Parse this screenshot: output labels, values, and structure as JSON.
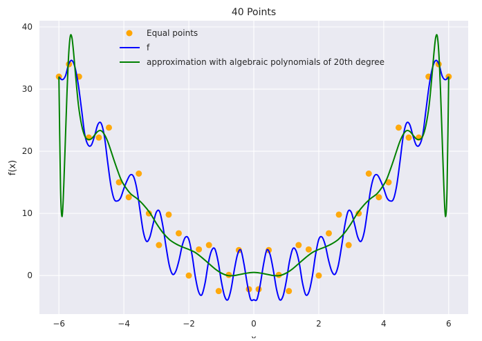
{
  "chart_data": {
    "type": "line",
    "title": "40 Points",
    "xlabel": "x",
    "ylabel": "f(x)",
    "xlim": [
      -6.6,
      6.6
    ],
    "ylim": [
      -6.2,
      41.0
    ],
    "xticks": [
      -6,
      -4,
      -2,
      0,
      2,
      4,
      6
    ],
    "xtick_labels": [
      "−6",
      "−4",
      "−2",
      "0",
      "2",
      "4",
      "6"
    ],
    "yticks": [
      0,
      10,
      20,
      30,
      40
    ],
    "ytick_labels": [
      "0",
      "10",
      "20",
      "30",
      "40"
    ],
    "grid": true,
    "legend_position": "top-center",
    "legend": [
      "Equal points",
      "f",
      "approximation with algebraic polynomials of 20th degree"
    ],
    "colors": {
      "background": "#EAEAF2",
      "grid": "#FFFFFF",
      "points": "#FFA500",
      "f": "#0000FF",
      "approximation": "#008000"
    },
    "series": [
      {
        "name": "Equal points",
        "kind": "scatter",
        "x": [
          -6.0,
          -5.69,
          -5.38,
          -5.08,
          -4.77,
          -4.46,
          -4.15,
          -3.85,
          -3.54,
          -3.23,
          -2.92,
          -2.62,
          -2.31,
          -2.0,
          -1.69,
          -1.38,
          -1.08,
          -0.77,
          -0.46,
          -0.15,
          0.15,
          0.46,
          0.77,
          1.08,
          1.38,
          1.69,
          2.0,
          2.31,
          2.62,
          2.92,
          3.23,
          3.54,
          3.85,
          4.15,
          4.46,
          4.77,
          5.08,
          5.38,
          5.69,
          6.0
        ],
        "y": [
          32.0,
          34.0,
          32.0,
          22.2,
          22.2,
          23.8,
          15.0,
          12.6,
          16.4,
          10.0,
          4.9,
          9.8,
          6.8,
          0.0,
          4.2,
          4.9,
          -2.5,
          0.1,
          4.1,
          -2.2,
          -2.2,
          4.1,
          0.1,
          -2.5,
          4.9,
          4.2,
          0.0,
          6.8,
          9.8,
          4.9,
          10.0,
          16.4,
          12.6,
          15.0,
          23.8,
          22.2,
          22.2,
          32.0,
          34.0,
          32.0
        ]
      },
      {
        "name": "f",
        "kind": "line",
        "x": [
          -6.0,
          -5.9,
          -5.8,
          -5.7,
          -5.6,
          -5.5,
          -5.4,
          -5.3,
          -5.2,
          -5.1,
          -5.0,
          -4.9,
          -4.8,
          -4.7,
          -4.6,
          -4.5,
          -4.4,
          -4.3,
          -4.2,
          -4.1,
          -4.0,
          -3.9,
          -3.8,
          -3.7,
          -3.6,
          -3.5,
          -3.4,
          -3.3,
          -3.2,
          -3.1,
          -3.0,
          -2.9,
          -2.8,
          -2.7,
          -2.6,
          -2.5,
          -2.4,
          -2.3,
          -2.2,
          -2.1,
          -2.0,
          -1.9,
          -1.8,
          -1.7,
          -1.6,
          -1.5,
          -1.4,
          -1.3,
          -1.2,
          -1.1,
          -1.0,
          -0.9,
          -0.8,
          -0.7,
          -0.6,
          -0.5,
          -0.4,
          -0.3,
          -0.2,
          -0.1,
          0.0,
          0.1,
          0.2,
          0.3,
          0.4,
          0.5,
          0.6,
          0.7,
          0.8,
          0.9,
          1.0,
          1.1,
          1.2,
          1.3,
          1.4,
          1.5,
          1.6,
          1.7,
          1.8,
          1.9,
          2.0,
          2.1,
          2.2,
          2.3,
          2.4,
          2.5,
          2.6,
          2.7,
          2.8,
          2.9,
          3.0,
          3.1,
          3.2,
          3.3,
          3.4,
          3.5,
          3.6,
          3.7,
          3.8,
          3.9,
          4.0,
          4.1,
          4.2,
          4.3,
          4.4,
          4.5,
          4.6,
          4.7,
          4.8,
          4.9,
          5.0,
          5.1,
          5.2,
          5.3,
          5.4,
          5.5,
          5.6,
          5.7,
          5.8,
          5.9,
          6.0
        ],
        "y": [
          32.0,
          31.5,
          32.1,
          34.0,
          34.6,
          33.4,
          30.6,
          26.6,
          22.6,
          21.0,
          21.0,
          22.5,
          24.3,
          24.5,
          22.4,
          18.3,
          14.5,
          12.3,
          12.0,
          12.5,
          14.0,
          15.3,
          16.2,
          15.9,
          13.9,
          10.4,
          7.0,
          5.5,
          6.2,
          8.3,
          10.2,
          10.3,
          8.0,
          4.6,
          1.6,
          0.2,
          0.7,
          2.5,
          4.9,
          6.2,
          5.8,
          3.3,
          -0.2,
          -2.6,
          -3.1,
          -1.2,
          2.0,
          4.0,
          4.3,
          2.3,
          -0.9,
          -3.3,
          -3.9,
          -2.2,
          0.9,
          3.4,
          4.1,
          1.8,
          -1.4,
          -3.8,
          -3.9,
          -3.8,
          -1.4,
          1.8,
          4.1,
          3.4,
          0.9,
          -2.2,
          -3.9,
          -3.3,
          -0.9,
          2.3,
          4.3,
          4.0,
          2.0,
          -1.2,
          -3.1,
          -2.6,
          -0.2,
          3.3,
          5.8,
          6.2,
          4.9,
          2.5,
          0.7,
          0.2,
          1.6,
          4.6,
          8.0,
          10.3,
          10.2,
          8.3,
          6.2,
          5.5,
          7.0,
          10.4,
          13.9,
          15.9,
          16.2,
          15.3,
          14.0,
          12.5,
          12.0,
          12.3,
          14.5,
          18.3,
          22.4,
          24.5,
          24.3,
          22.5,
          21.0,
          21.0,
          22.6,
          26.6,
          30.6,
          33.4,
          34.6,
          34.0,
          32.1,
          31.5,
          32.0
        ]
      },
      {
        "name": "approximation with algebraic polynomials of 20th degree",
        "kind": "line",
        "x": [
          -6.0,
          -5.95,
          -5.9,
          -5.85,
          -5.8,
          -5.75,
          -5.7,
          -5.65,
          -5.6,
          -5.55,
          -5.5,
          -5.4,
          -5.3,
          -5.2,
          -5.1,
          -5.0,
          -4.9,
          -4.8,
          -4.7,
          -4.6,
          -4.5,
          -4.4,
          -4.3,
          -4.2,
          -4.1,
          -4.0,
          -3.8,
          -3.6,
          -3.4,
          -3.2,
          -3.0,
          -2.8,
          -2.6,
          -2.4,
          -2.2,
          -2.0,
          -1.8,
          -1.6,
          -1.4,
          -1.2,
          -1.0,
          -0.8,
          -0.6,
          -0.4,
          -0.2,
          0.0,
          0.2,
          0.4,
          0.6,
          0.8,
          1.0,
          1.2,
          1.4,
          1.6,
          1.8,
          2.0,
          2.2,
          2.4,
          2.6,
          2.8,
          3.0,
          3.2,
          3.4,
          3.6,
          3.8,
          4.0,
          4.1,
          4.2,
          4.3,
          4.4,
          4.5,
          4.6,
          4.7,
          4.8,
          4.9,
          5.0,
          5.1,
          5.2,
          5.3,
          5.4,
          5.5,
          5.55,
          5.6,
          5.65,
          5.7,
          5.75,
          5.8,
          5.85,
          5.9,
          5.95,
          6.0
        ],
        "y": [
          32.0,
          14.0,
          9.5,
          14.5,
          22.0,
          29.5,
          35.5,
          38.5,
          38.3,
          36.0,
          33.0,
          27.5,
          24.2,
          22.4,
          21.9,
          22.0,
          22.6,
          23.2,
          23.3,
          22.7,
          21.6,
          20.1,
          18.5,
          17.0,
          15.6,
          14.6,
          13.2,
          12.4,
          11.4,
          10.1,
          8.4,
          6.9,
          5.8,
          5.1,
          4.6,
          4.2,
          3.7,
          2.9,
          2.0,
          1.1,
          0.4,
          0.0,
          0.0,
          0.2,
          0.4,
          0.5,
          0.4,
          0.2,
          0.0,
          0.0,
          0.4,
          1.1,
          2.0,
          2.9,
          3.7,
          4.2,
          4.6,
          5.1,
          5.8,
          6.9,
          8.4,
          10.1,
          11.4,
          12.4,
          13.2,
          14.6,
          15.6,
          17.0,
          18.5,
          20.1,
          21.6,
          22.7,
          23.3,
          23.2,
          22.6,
          22.0,
          21.9,
          22.4,
          24.2,
          27.5,
          33.0,
          36.0,
          38.3,
          38.5,
          35.5,
          29.5,
          22.0,
          14.5,
          9.5,
          14.0,
          32.0
        ]
      }
    ]
  }
}
